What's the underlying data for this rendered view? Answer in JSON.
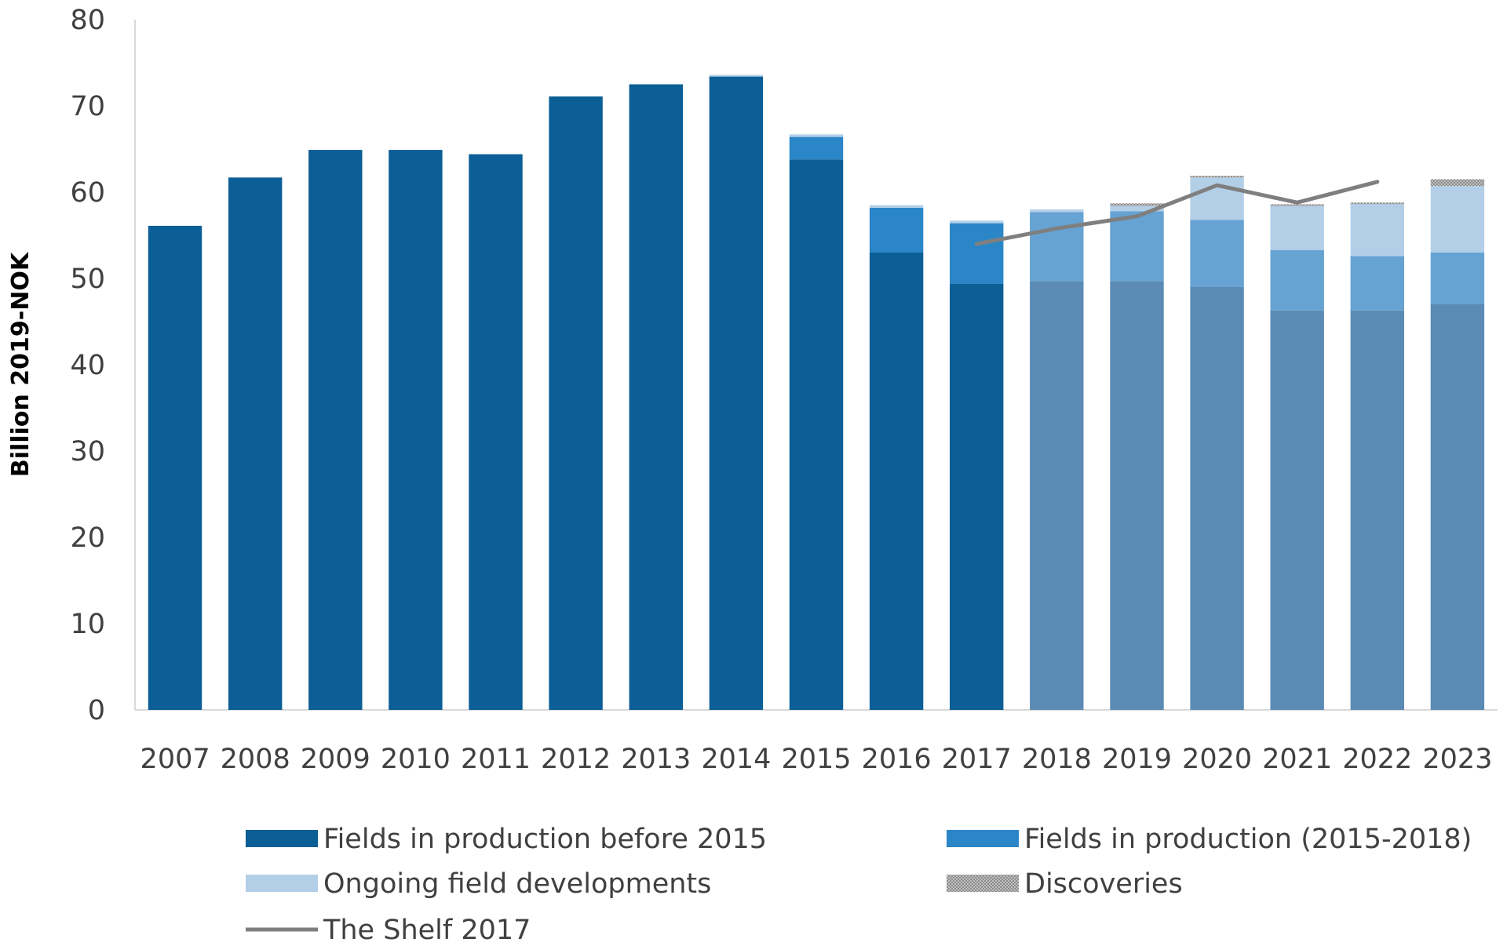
{
  "chart_data": {
    "type": "bar",
    "stacked": true,
    "xlabel": "",
    "ylabel": "Billion 2019-NOK",
    "ylim": [
      0,
      80
    ],
    "yticks": [
      0,
      10,
      20,
      30,
      40,
      50,
      60,
      70,
      80
    ],
    "grid": false,
    "legend_position": "bottom",
    "categories": [
      "2007",
      "2008",
      "2009",
      "2010",
      "2011",
      "2012",
      "2013",
      "2014",
      "2015",
      "2016",
      "2017",
      "2018",
      "2019",
      "2020",
      "2021",
      "2022",
      "2023"
    ],
    "forecast_from": "2018",
    "series": [
      {
        "name": "Fields in production before 2015",
        "color": "#0b5e96",
        "forecast_color": "#5b8bb5",
        "values": [
          56.1,
          61.7,
          64.9,
          64.9,
          64.4,
          71.1,
          72.5,
          73.4,
          63.8,
          53.0,
          49.4,
          49.7,
          49.7,
          49.0,
          46.3,
          46.3,
          47.0
        ]
      },
      {
        "name": "Fields in production (2015-2018)",
        "color": "#2a86c6",
        "forecast_color": "#66a3d3",
        "values": [
          0,
          0,
          0,
          0,
          0,
          0,
          0,
          0,
          2.6,
          5.2,
          7.0,
          8.0,
          8.1,
          7.8,
          7.0,
          6.3,
          6.0
        ]
      },
      {
        "name": "Ongoing field developments",
        "color": "#b3cfe8",
        "forecast_color": "#b3cfe8",
        "values": [
          0,
          0,
          0,
          0,
          0,
          0,
          0,
          0.2,
          0.3,
          0.3,
          0.3,
          0.3,
          0.6,
          4.9,
          5.1,
          6.0,
          7.7
        ]
      },
      {
        "name": "Discoveries",
        "color": "#a6a6a6",
        "forecast_color": "#a6a6a6",
        "values": [
          0,
          0,
          0,
          0,
          0,
          0,
          0,
          0,
          0,
          0,
          0,
          0,
          0.3,
          0.2,
          0.2,
          0.2,
          0.8
        ]
      }
    ],
    "line": {
      "name": "The Shelf  2017",
      "color": "#7f7f7f",
      "x": [
        "2017",
        "2018",
        "2019",
        "2020",
        "2021",
        "2022"
      ],
      "values": [
        54.0,
        55.8,
        57.2,
        60.8,
        58.8,
        61.2
      ]
    }
  }
}
